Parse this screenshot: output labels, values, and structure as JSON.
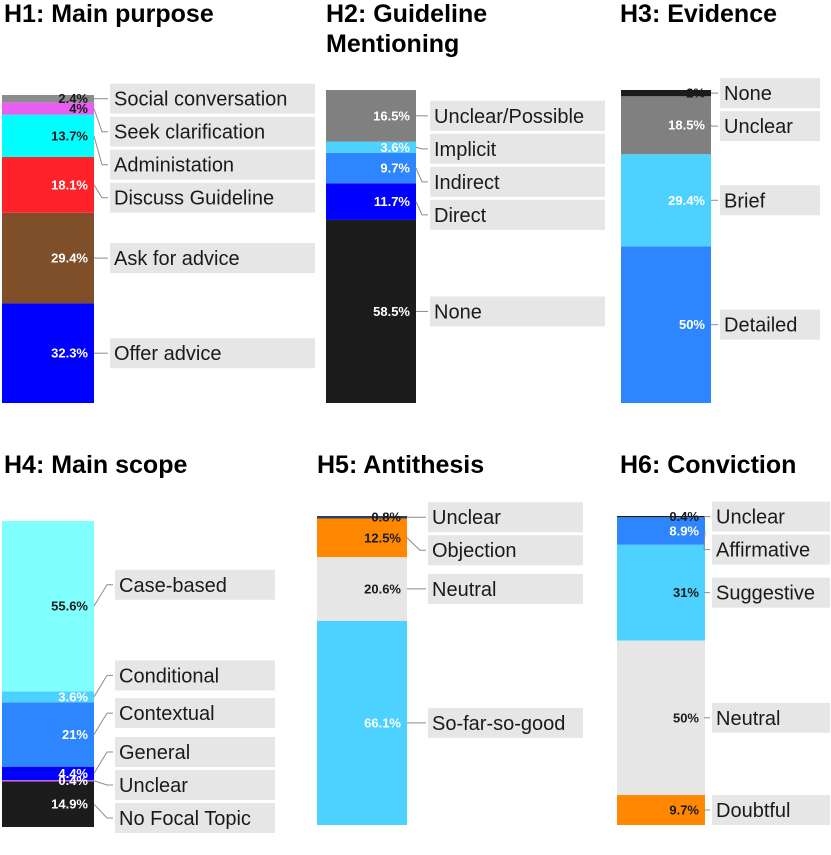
{
  "chart_data": [
    {
      "type": "bar",
      "title_lines": [
        "H1: Main purpose"
      ],
      "ylim": [
        0,
        100
      ],
      "segments": [
        {
          "label": "Offer advice",
          "value_text": "32.3%",
          "value": 32.3,
          "color": "#0000ff",
          "text_color": "#ffffff"
        },
        {
          "label": "Ask for advice",
          "value_text": "29.4%",
          "value": 29.4,
          "color": "#7f4f2a",
          "text_color": "#ffffff"
        },
        {
          "label": "Discuss Guideline",
          "value_text": "18.1%",
          "value": 18.1,
          "color": "#ff2229",
          "text_color": "#ffffff"
        },
        {
          "label": "Administation",
          "value_text": "13.7%",
          "value": 13.7,
          "color": "#00ffff",
          "text_color": "#1a1a1a"
        },
        {
          "label": "Seek clarification",
          "value_text": "4%",
          "value": 4.0,
          "color": "#e85ef0",
          "text_color": "#1a1a1a"
        },
        {
          "label": "Social conversation",
          "value_text": "2.4%",
          "value": 2.4,
          "color": "#8c8c8c",
          "text_color": "#1a1a1a"
        }
      ]
    },
    {
      "type": "bar",
      "title_lines": [
        "H2: Guideline",
        "Mentioning"
      ],
      "ylim": [
        0,
        100
      ],
      "segments": [
        {
          "label": "None",
          "value_text": "58.5%",
          "value": 58.5,
          "color": "#1c1c1c",
          "text_color": "#ffffff"
        },
        {
          "label": "Direct",
          "value_text": "11.7%",
          "value": 11.7,
          "color": "#0000ff",
          "text_color": "#ffffff"
        },
        {
          "label": "Indirect",
          "value_text": "9.7%",
          "value": 9.7,
          "color": "#2e86ff",
          "text_color": "#ffffff"
        },
        {
          "label": "Implicit",
          "value_text": "3.6%",
          "value": 3.6,
          "color": "#4dd2ff",
          "text_color": "#ffffff"
        },
        {
          "label": "Unclear/Possible",
          "value_text": "16.5%",
          "value": 16.5,
          "color": "#808080",
          "text_color": "#ffffff"
        }
      ]
    },
    {
      "type": "bar",
      "title_lines": [
        "H3: Evidence"
      ],
      "ylim": [
        0,
        100
      ],
      "segments": [
        {
          "label": "Detailed",
          "value_text": "50%",
          "value": 50.0,
          "color": "#2e86ff",
          "text_color": "#ffffff"
        },
        {
          "label": "Brief",
          "value_text": "29.4%",
          "value": 29.4,
          "color": "#4dd2ff",
          "text_color": "#ffffff"
        },
        {
          "label": "Unclear",
          "value_text": "18.5%",
          "value": 18.5,
          "color": "#808080",
          "text_color": "#ffffff"
        },
        {
          "label": "None",
          "value_text": "2%",
          "value": 2.0,
          "color": "#1c1c1c",
          "text_color": "#1a1a1a"
        }
      ]
    },
    {
      "type": "bar",
      "title_lines": [
        "H4: Main scope"
      ],
      "ylim": [
        0,
        100
      ],
      "segments": [
        {
          "label": "No Focal Topic",
          "value_text": "14.9%",
          "value": 14.9,
          "color": "#1c1c1c",
          "text_color": "#ffffff"
        },
        {
          "label": "Unclear",
          "value_text": "0.4%",
          "value": 0.4,
          "color": "#e85ef0",
          "text_color": "#ffffff"
        },
        {
          "label": "General",
          "value_text": "4.4%",
          "value": 4.4,
          "color": "#0000ff",
          "text_color": "#ffffff"
        },
        {
          "label": "Contextual",
          "value_text": "21%",
          "value": 21.0,
          "color": "#2e86ff",
          "text_color": "#ffffff"
        },
        {
          "label": "Conditional",
          "value_text": "3.6%",
          "value": 3.6,
          "color": "#4dd2ff",
          "text_color": "#ffffff"
        },
        {
          "label": "Case-based",
          "value_text": "55.6%",
          "value": 55.6,
          "color": "#80ffff",
          "text_color": "#1a1a1a"
        }
      ]
    },
    {
      "type": "bar",
      "title_lines": [
        "H5: Antithesis"
      ],
      "ylim": [
        0,
        100
      ],
      "segments": [
        {
          "label": "So-far-so-good",
          "value_text": "66.1%",
          "value": 66.1,
          "color": "#4dd2ff",
          "text_color": "#ffffff"
        },
        {
          "label": "Neutral",
          "value_text": "20.6%",
          "value": 20.6,
          "color": "#e6e6e6",
          "text_color": "#1a1a1a"
        },
        {
          "label": "Objection",
          "value_text": "12.5%",
          "value": 12.5,
          "color": "#ff8800",
          "text_color": "#1a1a1a"
        },
        {
          "label": "Unclear",
          "value_text": "0.8%",
          "value": 0.8,
          "color": "#2c3e66",
          "text_color": "#1a1a1a"
        }
      ]
    },
    {
      "type": "bar",
      "title_lines": [
        "H6: Conviction"
      ],
      "ylim": [
        0,
        100
      ],
      "segments": [
        {
          "label": "Doubtful",
          "value_text": "9.7%",
          "value": 9.7,
          "color": "#ff8800",
          "text_color": "#1a1a1a"
        },
        {
          "label": "Neutral",
          "value_text": "50%",
          "value": 50.0,
          "color": "#e6e6e6",
          "text_color": "#1a1a1a"
        },
        {
          "label": "Suggestive",
          "value_text": "31%",
          "value": 31.0,
          "color": "#4dd2ff",
          "text_color": "#1a1a1a"
        },
        {
          "label": "Affirmative",
          "value_text": "8.9%",
          "value": 8.9,
          "color": "#2e86ff",
          "text_color": "#ffffff"
        },
        {
          "label": "Unclear",
          "value_text": "0.4%",
          "value": 0.4,
          "color": "#1c1c1c",
          "text_color": "#1a1a1a"
        }
      ]
    }
  ]
}
